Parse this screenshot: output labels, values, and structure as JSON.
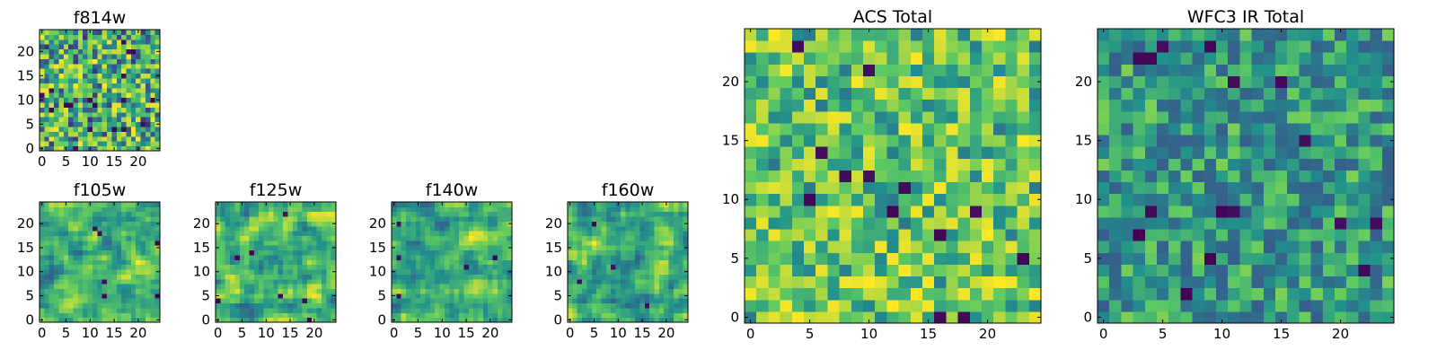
{
  "chart_data": [
    {
      "type": "heatmap",
      "id": "f814w",
      "title": "f814w",
      "grid": 25,
      "seed": 814,
      "mode": "sharp",
      "xlim": [
        0,
        24
      ],
      "ylim": [
        0,
        24
      ],
      "xticks": [
        "0",
        "5",
        "10",
        "15",
        "20"
      ],
      "yticks": [
        "0",
        "5",
        "10",
        "15",
        "20"
      ]
    },
    {
      "type": "heatmap",
      "id": "f105w",
      "title": "f105w",
      "grid": 25,
      "seed": 105,
      "mode": "smooth",
      "xlim": [
        0,
        24
      ],
      "ylim": [
        0,
        24
      ],
      "xticks": [
        "0",
        "5",
        "10",
        "15",
        "20"
      ],
      "yticks": [
        "0",
        "5",
        "10",
        "15",
        "20"
      ]
    },
    {
      "type": "heatmap",
      "id": "f125w",
      "title": "f125w",
      "grid": 25,
      "seed": 125,
      "mode": "smooth",
      "xlim": [
        0,
        24
      ],
      "ylim": [
        0,
        24
      ],
      "xticks": [
        "0",
        "5",
        "10",
        "15",
        "20"
      ],
      "yticks": [
        "0",
        "5",
        "10",
        "15",
        "20"
      ]
    },
    {
      "type": "heatmap",
      "id": "f140w",
      "title": "f140w",
      "grid": 25,
      "seed": 140,
      "mode": "smooth",
      "xlim": [
        0,
        24
      ],
      "ylim": [
        0,
        24
      ],
      "xticks": [
        "0",
        "5",
        "10",
        "15",
        "20"
      ],
      "yticks": [
        "0",
        "5",
        "10",
        "15",
        "20"
      ]
    },
    {
      "type": "heatmap",
      "id": "f160w",
      "title": "f160w",
      "grid": 25,
      "seed": 160,
      "mode": "smooth",
      "xlim": [
        0,
        24
      ],
      "ylim": [
        0,
        24
      ],
      "xticks": [
        "0",
        "5",
        "10",
        "15",
        "20"
      ],
      "yticks": [
        "0",
        "5",
        "10",
        "15",
        "20"
      ]
    },
    {
      "type": "heatmap",
      "id": "acs-total",
      "title": "ACS Total",
      "grid": 25,
      "seed": 2001,
      "mode": "bright",
      "xlim": [
        0,
        24
      ],
      "ylim": [
        0,
        24
      ],
      "xticks": [
        "0",
        "5",
        "10",
        "15",
        "20"
      ],
      "yticks": [
        "0",
        "5",
        "10",
        "15",
        "20"
      ]
    },
    {
      "type": "heatmap",
      "id": "wfc3-ir-total",
      "title": "WFC3 IR Total",
      "grid": 25,
      "seed": 3003,
      "mode": "dim",
      "xlim": [
        0,
        24
      ],
      "ylim": [
        0,
        24
      ],
      "xticks": [
        "0",
        "5",
        "10",
        "15",
        "20"
      ],
      "yticks": [
        "0",
        "5",
        "10",
        "15",
        "20"
      ]
    }
  ],
  "colormap": [
    "#440154",
    "#3b528b",
    "#21918c",
    "#5ec962",
    "#fde725"
  ]
}
